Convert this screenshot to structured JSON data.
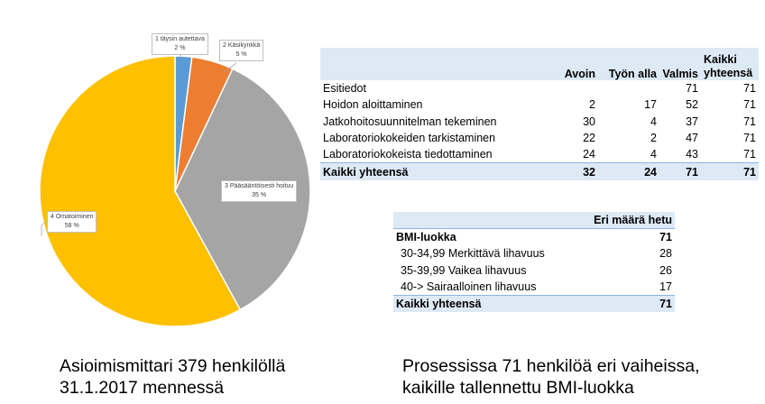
{
  "chart_data": {
    "type": "pie",
    "slices": [
      {
        "label": "1 täysin autettava",
        "value": 2,
        "display": "2 %",
        "color": "#5b9bd5"
      },
      {
        "label": "2 Käsikynkkä",
        "value": 5,
        "display": "5 %",
        "color": "#ed7d31"
      },
      {
        "label": "3 Pääsääntöisesti hoituu",
        "value": 35,
        "display": "35 %",
        "color": "#a5a5a5"
      },
      {
        "label": "4 Omatoiminen",
        "value": 58,
        "display": "58 %",
        "color": "#ffc000"
      }
    ]
  },
  "table1": {
    "headers": [
      "",
      "Avoin",
      "Työn alla",
      "Valmis",
      "Kaikki\nyhteensä"
    ],
    "rows": [
      {
        "label": "Esitiedot",
        "avoin": "",
        "tyon_alla": "",
        "valmis": "71",
        "total": "71"
      },
      {
        "label": "Hoidon aloittaminen",
        "avoin": "2",
        "tyon_alla": "17",
        "valmis": "52",
        "total": "71"
      },
      {
        "label": "Jatkohoitosuunnitelman tekeminen",
        "avoin": "30",
        "tyon_alla": "4",
        "valmis": "37",
        "total": "71"
      },
      {
        "label": "Laboratoriokokeiden tarkistaminen",
        "avoin": "22",
        "tyon_alla": "2",
        "valmis": "47",
        "total": "71"
      },
      {
        "label": "Laboratoriokokeista tiedottaminen",
        "avoin": "24",
        "tyon_alla": "4",
        "valmis": "43",
        "total": "71"
      }
    ],
    "total": {
      "label": "Kaikki yhteensä",
      "avoin": "32",
      "tyon_alla": "24",
      "valmis": "71",
      "total": "71"
    }
  },
  "table2": {
    "header": "Eri määrä hetu",
    "group": {
      "label": "BMI-luokka",
      "value": "71"
    },
    "rows": [
      {
        "label": "30-34,99 Merkittävä lihavuus",
        "value": "28"
      },
      {
        "label": "35-39,99 Vaikea lihavuus",
        "value": "26"
      },
      {
        "label": "40-> Sairaalloinen lihavuus",
        "value": "17"
      }
    ],
    "total": {
      "label": "Kaikki yhteensä",
      "value": "71"
    }
  },
  "captions": {
    "left_line1": "Asioimismittari 379 henkilöllä",
    "left_line2": "31.1.2017 mennessä",
    "right_line1": "Prosessissa 71 henkilöä eri vaiheissa,",
    "right_line2": "kaikille tallennettu BMI-luokka"
  }
}
